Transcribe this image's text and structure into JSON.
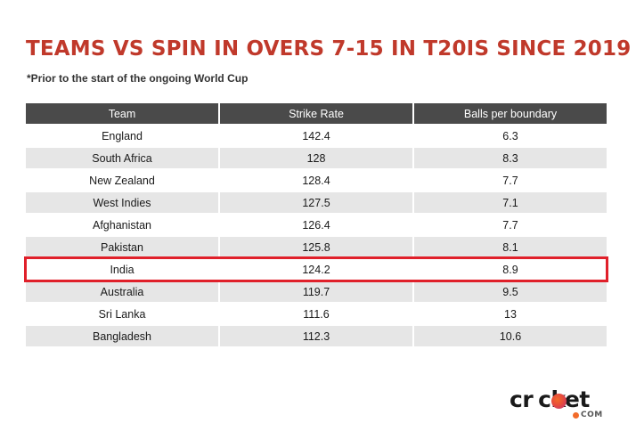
{
  "title": "TEAMS VS SPIN IN OVERS 7-15 IN T20IS SINCE 2019",
  "subtitle": "*Prior to the start of the ongoing World Cup",
  "highlight_color": "#e0202a",
  "chart_data": {
    "type": "table",
    "title": "TEAMS VS SPIN IN OVERS 7-15 IN T20IS SINCE 2019",
    "subtitle": "*Prior to the start of the ongoing World Cup",
    "columns": [
      "Team",
      "Strike Rate",
      "Balls per boundary"
    ],
    "rows": [
      [
        "England",
        "142.4",
        "6.3"
      ],
      [
        "South Africa",
        "128",
        "8.3"
      ],
      [
        "New Zealand",
        "128.4",
        "7.7"
      ],
      [
        "West Indies",
        "127.5",
        "7.1"
      ],
      [
        "Afghanistan",
        "126.4",
        "7.7"
      ],
      [
        "Pakistan",
        "125.8",
        "8.1"
      ],
      [
        "India",
        "124.2",
        "8.9"
      ],
      [
        "Australia",
        "119.7",
        "9.5"
      ],
      [
        "Sri Lanka",
        "111.6",
        "13"
      ],
      [
        "Bangladesh",
        "112.3",
        "10.6"
      ]
    ],
    "highlighted_row": "India"
  },
  "logo": {
    "word_left": "cr",
    "word_right": "cket",
    "suffix": "COM",
    "ball_color": "#e74c3c",
    "dot_color": "#f26b2a"
  }
}
